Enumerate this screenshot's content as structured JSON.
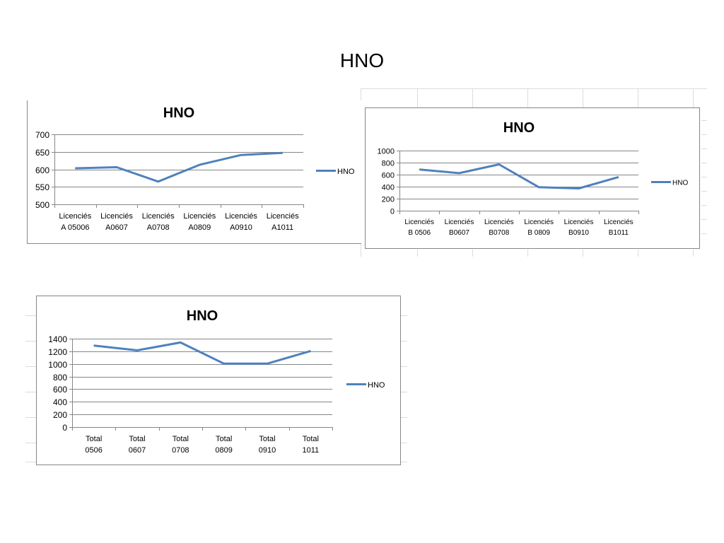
{
  "slide": {
    "title": "HNO"
  },
  "colors": {
    "series": "#4F81BD",
    "grid": "#868686",
    "axis": "#868686",
    "frame": "#868686"
  },
  "chart_data": [
    {
      "type": "line",
      "title": "HNO",
      "categories": [
        [
          "Licenciés",
          "A 05006"
        ],
        [
          "Licenciés",
          "A0607"
        ],
        [
          "Licenciés",
          "A0708"
        ],
        [
          "Licenciés",
          "A0809"
        ],
        [
          "Licenciés",
          "A0910"
        ],
        [
          "Licenciés",
          "A1011"
        ]
      ],
      "series": [
        {
          "name": "HNO",
          "values": [
            603,
            606,
            565,
            613,
            641,
            647
          ]
        }
      ],
      "ylim": [
        500,
        700
      ],
      "yticks": [
        "500",
        "550",
        "600",
        "650",
        "700"
      ],
      "grid": true,
      "legend": "right"
    },
    {
      "type": "line",
      "title": "HNO",
      "categories": [
        [
          "Licenciés",
          "B 0506"
        ],
        [
          "Licenciés",
          "B0607"
        ],
        [
          "Licenciés",
          "B0708"
        ],
        [
          "Licenciés",
          "B 0809"
        ],
        [
          "Licenciés",
          "B0910"
        ],
        [
          "Licenciés",
          "B1011"
        ]
      ],
      "series": [
        {
          "name": "HNO",
          "values": [
            685,
            625,
            770,
            390,
            370,
            560
          ]
        }
      ],
      "ylim": [
        0,
        1000
      ],
      "yticks": [
        "0",
        "200",
        "400",
        "600",
        "800",
        "1000"
      ],
      "grid": true,
      "legend": "right"
    },
    {
      "type": "line",
      "title": "HNO",
      "categories": [
        [
          "Total",
          "0506"
        ],
        [
          "Total",
          "0607"
        ],
        [
          "Total",
          "0708"
        ],
        [
          "Total",
          "0809"
        ],
        [
          "Total",
          "0910"
        ],
        [
          "Total",
          "1011"
        ]
      ],
      "series": [
        {
          "name": "HNO",
          "values": [
            1290,
            1215,
            1340,
            1005,
            1005,
            1205
          ]
        }
      ],
      "ylim": [
        0,
        1400
      ],
      "yticks": [
        "0",
        "200",
        "400",
        "600",
        "800",
        "1000",
        "1200",
        "1400"
      ],
      "grid": true,
      "legend": "right"
    }
  ]
}
